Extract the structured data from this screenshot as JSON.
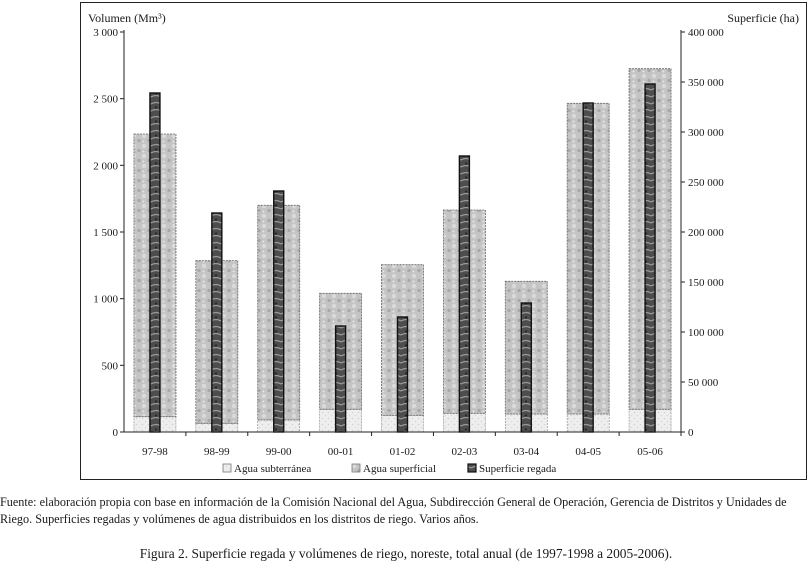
{
  "chart_data": {
    "type": "bar",
    "categories": [
      "97-98",
      "98-99",
      "99-00",
      "00-01",
      "01-02",
      "02-03",
      "03-04",
      "04-05",
      "05-06"
    ],
    "series": [
      {
        "name": "Agua subterránea",
        "axis": "left",
        "stack": "volumen",
        "values": [
          115,
          65,
          90,
          170,
          125,
          140,
          135,
          135,
          170
        ]
      },
      {
        "name": "Agua superficial",
        "axis": "left",
        "stack": "volumen",
        "values": [
          2120,
          1220,
          1610,
          870,
          1130,
          1525,
          995,
          2330,
          2555
        ]
      },
      {
        "name": "Superficie regada",
        "axis": "right",
        "values": [
          339000,
          219000,
          241000,
          106000,
          115000,
          276000,
          129000,
          329000,
          348000
        ]
      }
    ],
    "ylabel": "Volumen (Mm³)",
    "y2label": "Superficie (ha)",
    "ylim": [
      0,
      3000
    ],
    "y2lim": [
      0,
      400000
    ],
    "yticks": [
      "0",
      "500",
      "1 000",
      "1 500",
      "2 000",
      "2 500",
      "3 000"
    ],
    "y2ticks": [
      "0",
      "50 000",
      "100 000",
      "150 000",
      "200 000",
      "250 000",
      "300 000",
      "350 000",
      "400 000"
    ],
    "grid": false,
    "legend_position": "bottom"
  },
  "colors": {
    "subterranea": "#e6e6e6",
    "superficial": "#c2c2c2",
    "regada": "#4a4a4a",
    "axis": "#222222"
  },
  "source_note": "Fuente: elaboración propia con base en información de la Comisión Nacional del Agua, Subdirección General de Operación, Gerencia de Distritos y Unidades de Riego. Superficies regadas y volúmenes de agua distribuidos en los distritos de riego. Varios años.",
  "caption": "Figura 2. Superficie regada y volúmenes de riego, noreste, total anual (de 1997-1998 a 2005-2006)."
}
